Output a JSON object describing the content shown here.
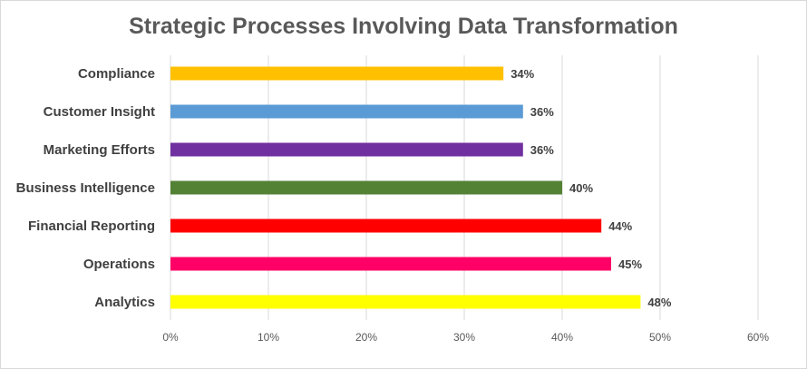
{
  "chart_data": {
    "type": "bar",
    "orientation": "horizontal",
    "title": "Strategic Processes Involving Data Transformation",
    "categories": [
      "Compliance",
      "Customer Insight",
      "Marketing Efforts",
      "Business Intelligence",
      "Financial Reporting",
      "Operations",
      "Analytics"
    ],
    "values": [
      34,
      36,
      36,
      40,
      44,
      45,
      48
    ],
    "data_labels": [
      "34%",
      "36%",
      "36%",
      "40%",
      "44%",
      "45%",
      "48%"
    ],
    "colors": [
      "#FFC000",
      "#5B9BD5",
      "#7030A0",
      "#548235",
      "#FF0000",
      "#FF0066",
      "#FFFF00"
    ],
    "xlim": [
      0,
      60
    ],
    "xticks": [
      "0%",
      "10%",
      "20%",
      "30%",
      "40%",
      "50%",
      "60%"
    ],
    "grid": true,
    "legend": "none",
    "xlabel": "",
    "ylabel": ""
  }
}
